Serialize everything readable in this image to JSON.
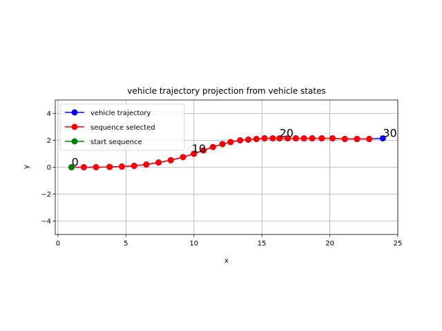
{
  "chart_data": {
    "type": "line",
    "title": "vehicle trajectory projection from vehicle states",
    "xlabel": "x",
    "ylabel": "y",
    "xlim": [
      -0.2,
      25.0
    ],
    "ylim": [
      -5,
      5
    ],
    "xticks": [
      0,
      5,
      10,
      15,
      20,
      25
    ],
    "xtick_labels": [
      "0",
      "5",
      "10",
      "15",
      "20",
      "25"
    ],
    "yticks": [
      -4,
      -2,
      0,
      2,
      4
    ],
    "ytick_labels": [
      "−4",
      "−2",
      "0",
      "2",
      "4"
    ],
    "grid": true,
    "legend_position": "upper-left",
    "series": [
      {
        "name": "vehicle trajectory",
        "color": "#0000ff",
        "marker": "circle",
        "x": [
          1.0,
          1.9,
          2.8,
          3.8,
          4.7,
          5.6,
          6.5,
          7.4,
          8.3,
          9.2,
          10.0,
          10.7,
          11.4,
          12.1,
          12.7,
          13.4,
          14.0,
          14.6,
          15.2,
          15.8,
          16.3,
          16.9,
          17.5,
          18.1,
          18.7,
          19.4,
          20.2,
          21.1,
          22.0,
          22.9,
          23.9
        ],
        "y": [
          0.0,
          0.0,
          0.0,
          0.02,
          0.05,
          0.1,
          0.2,
          0.35,
          0.52,
          0.75,
          1.0,
          1.25,
          1.5,
          1.72,
          1.87,
          2.0,
          2.05,
          2.1,
          2.15,
          2.15,
          2.15,
          2.15,
          2.15,
          2.15,
          2.15,
          2.15,
          2.15,
          2.1,
          2.1,
          2.1,
          2.15
        ]
      },
      {
        "name": "sequence selected",
        "color": "#ff0000",
        "marker": "circle",
        "x": [
          1.0,
          1.9,
          2.8,
          3.8,
          4.7,
          5.6,
          6.5,
          7.4,
          8.3,
          9.2,
          10.0,
          10.7,
          11.4,
          12.1,
          12.7,
          13.4,
          14.0,
          14.6,
          15.2,
          15.8,
          16.3,
          16.9,
          17.5,
          18.1,
          18.7,
          19.4,
          20.2,
          21.1,
          22.0,
          22.9
        ],
        "y": [
          0.0,
          0.0,
          0.0,
          0.02,
          0.05,
          0.1,
          0.2,
          0.35,
          0.52,
          0.75,
          1.0,
          1.25,
          1.5,
          1.72,
          1.87,
          2.0,
          2.05,
          2.1,
          2.15,
          2.15,
          2.15,
          2.15,
          2.15,
          2.15,
          2.15,
          2.15,
          2.15,
          2.1,
          2.1,
          2.1
        ]
      },
      {
        "name": "start sequence",
        "color": "#008000",
        "marker": "circle",
        "x": [
          1.0
        ],
        "y": [
          0.0
        ]
      }
    ],
    "annotations": [
      {
        "text": "0",
        "x": 1.0,
        "y": 0.0
      },
      {
        "text": "10",
        "x": 10.0,
        "y": 1.0
      },
      {
        "text": "20",
        "x": 16.3,
        "y": 2.15
      },
      {
        "text": "30",
        "x": 23.9,
        "y": 2.15
      }
    ]
  }
}
